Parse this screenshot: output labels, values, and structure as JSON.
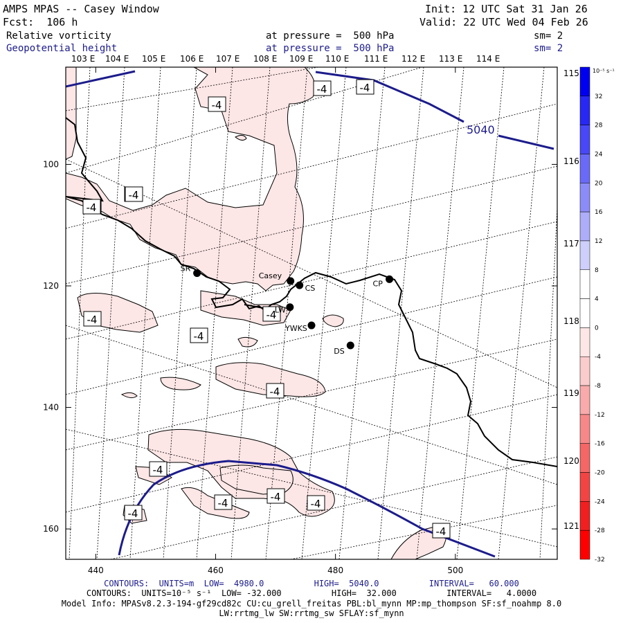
{
  "header": {
    "title": "AMPS MPAS -- Casey Window",
    "fcst": "Fcst:  106 h",
    "init": "Init: 12 UTC Sat 31 Jan 26",
    "valid": "Valid: 22 UTC Wed 04 Feb 26",
    "field1": {
      "name": "Relative vorticity",
      "at": "at pressure =  500 hPa",
      "sm": "sm= 2"
    },
    "field2": {
      "name": "Geopotential height",
      "at": "at pressure =  500 hPa",
      "sm": "sm= 2"
    }
  },
  "colorbar": {
    "unit": "10⁻⁵ s⁻¹",
    "ticks": [
      "32",
      "28",
      "24",
      "20",
      "16",
      "12",
      "8",
      "4",
      "0",
      "-4",
      "-8",
      "-12",
      "-16",
      "-20",
      "-24",
      "-28",
      "-32"
    ],
    "colors": [
      "#0000f0",
      "#2828f5",
      "#4848f8",
      "#6a6af9",
      "#8c8cf9",
      "#adadfa",
      "#cfcffb",
      "#ffffff",
      "#ffffff",
      "#fde6e6",
      "#fbcccc",
      "#f9aaaa",
      "#f78888",
      "#f56666",
      "#f34444",
      "#f12020",
      "#ff0000"
    ]
  },
  "chart_data": {
    "type": "contour-map",
    "xticks": [
      "440",
      "460",
      "480",
      "500"
    ],
    "yticks": [
      "100",
      "120",
      "140",
      "160"
    ],
    "xlim": [
      435,
      517
    ],
    "ylim": [
      84,
      165
    ],
    "lon_labels_top": [
      "103 E",
      "104 E",
      "105 E",
      "106 E",
      "107 E",
      "108 E",
      "109 E",
      "110 E",
      "111 E",
      "112 E",
      "113 E",
      "114 E"
    ],
    "lon_labels_right": [
      "115 E",
      "116 E",
      "117 E",
      "118 E",
      "119 E",
      "120 E",
      "121 E"
    ],
    "stations": [
      {
        "name": "SR",
        "x": 456.9,
        "y": 117.9
      },
      {
        "name": "Casey",
        "x": 472.5,
        "y": 119.2
      },
      {
        "name": "CS",
        "x": 474.0,
        "y": 119.9
      },
      {
        "name": "LW",
        "x": 472.4,
        "y": 123.5
      },
      {
        "name": "YWKS",
        "x": 476.0,
        "y": 126.5
      },
      {
        "name": "DS",
        "x": 482.5,
        "y": 129.8
      },
      {
        "name": "CP",
        "x": 489.0,
        "y": 118.9
      }
    ],
    "height_contour_labels": [
      "5040"
    ],
    "vorticity_contour_labels": [
      "-4",
      "-4",
      "-4",
      "-4",
      "-4",
      "-4",
      "-4",
      "-4",
      "-4",
      "-4",
      "-4",
      "-4",
      "-4",
      "-4",
      "-4",
      "-4",
      "-4"
    ]
  },
  "footer": {
    "line1": "CONTOURS:  UNITS=m  LOW=  4980.0          HIGH=  5040.0          INTERVAL=   60.000",
    "line2": "CONTOURS:  UNITS=10⁻⁵ s⁻¹  LOW= -32.000          HIGH=  32.000          INTERVAL=   4.0000",
    "line3": "Model Info: MPASv8.2.3-194-gf29cd82c CU:cu_grell_freitas PBL:bl_mynn MP:mp_thompson SF:sf_noahmp 8.0",
    "line4": "LW:rrtmg_lw SW:rrtmg_sw SFLAY:sf_mynn"
  }
}
